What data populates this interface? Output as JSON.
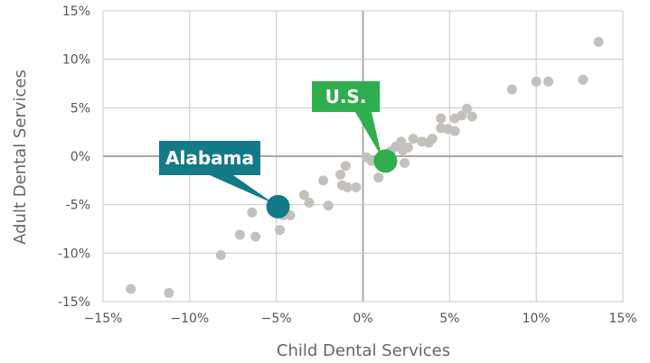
{
  "chart_data": {
    "type": "scatter",
    "title": "",
    "xlabel": "Child Dental Services",
    "ylabel": "Adult Dental Services",
    "xlim": [
      -15,
      15
    ],
    "ylim": [
      -15,
      15
    ],
    "x_ticks": [
      {
        "value": -15,
        "label": "−15%"
      },
      {
        "value": -10,
        "label": "−10%"
      },
      {
        "value": -5,
        "label": "−5%"
      },
      {
        "value": 0,
        "label": "0%"
      },
      {
        "value": 5,
        "label": "5%"
      },
      {
        "value": 10,
        "label": "10%"
      },
      {
        "value": 15,
        "label": "15%"
      }
    ],
    "y_ticks": [
      {
        "value": 15,
        "label": "15%"
      },
      {
        "value": 10,
        "label": "10%"
      },
      {
        "value": 5,
        "label": "5%"
      },
      {
        "value": 0,
        "label": "0%"
      },
      {
        "value": -5,
        "label": "-5%"
      },
      {
        "value": -10,
        "label": "-10%"
      },
      {
        "value": -15,
        "label": "-15%"
      }
    ],
    "grid": true,
    "colors": {
      "points": "#c4c0bc",
      "alabama": "#137a87",
      "us": "#2fae4e",
      "grid": "#c8c8c8",
      "zero_line": "#a9a9a9"
    },
    "points": [
      {
        "x": -13.4,
        "y": -13.7
      },
      {
        "x": -11.2,
        "y": -14.1
      },
      {
        "x": -8.2,
        "y": -10.2
      },
      {
        "x": -7.1,
        "y": -8.1
      },
      {
        "x": -6.2,
        "y": -8.3
      },
      {
        "x": -6.4,
        "y": -5.8
      },
      {
        "x": -4.8,
        "y": -7.6
      },
      {
        "x": -4.6,
        "y": -6.1
      },
      {
        "x": -4.2,
        "y": -6.1
      },
      {
        "x": -3.4,
        "y": -4.0
      },
      {
        "x": -3.1,
        "y": -4.8
      },
      {
        "x": -2.3,
        "y": -2.5
      },
      {
        "x": -2.0,
        "y": -5.1
      },
      {
        "x": -1.2,
        "y": -3.0
      },
      {
        "x": -1.3,
        "y": -1.9
      },
      {
        "x": -0.9,
        "y": -3.2
      },
      {
        "x": -1.0,
        "y": -1.0
      },
      {
        "x": -0.4,
        "y": -3.2
      },
      {
        "x": 0.2,
        "y": -0.1
      },
      {
        "x": 0.5,
        "y": -0.5
      },
      {
        "x": 0.9,
        "y": -2.2
      },
      {
        "x": 1.1,
        "y": -0.3
      },
      {
        "x": 1.6,
        "y": 0.5
      },
      {
        "x": 1.9,
        "y": 1.0
      },
      {
        "x": 2.2,
        "y": 1.5
      },
      {
        "x": 2.4,
        "y": -0.7
      },
      {
        "x": 2.3,
        "y": 0.6
      },
      {
        "x": 2.6,
        "y": 0.9
      },
      {
        "x": 2.9,
        "y": 1.8
      },
      {
        "x": 3.4,
        "y": 1.5
      },
      {
        "x": 3.8,
        "y": 1.4
      },
      {
        "x": 4.0,
        "y": 1.8
      },
      {
        "x": 4.5,
        "y": 3.9
      },
      {
        "x": 4.5,
        "y": 2.9
      },
      {
        "x": 4.9,
        "y": 2.8
      },
      {
        "x": 5.3,
        "y": 2.6
      },
      {
        "x": 5.3,
        "y": 3.9
      },
      {
        "x": 5.7,
        "y": 4.2
      },
      {
        "x": 6.0,
        "y": 4.9
      },
      {
        "x": 6.3,
        "y": 4.1
      },
      {
        "x": 8.6,
        "y": 6.9
      },
      {
        "x": 10.0,
        "y": 7.7
      },
      {
        "x": 10.7,
        "y": 7.7
      },
      {
        "x": 12.7,
        "y": 7.9
      },
      {
        "x": 13.6,
        "y": 11.8
      }
    ],
    "highlights": [
      {
        "key": "alabama",
        "label": "Alabama",
        "x": -4.9,
        "y": -5.2
      },
      {
        "key": "us",
        "label": "U.S.",
        "x": 1.3,
        "y": -0.5
      }
    ]
  }
}
